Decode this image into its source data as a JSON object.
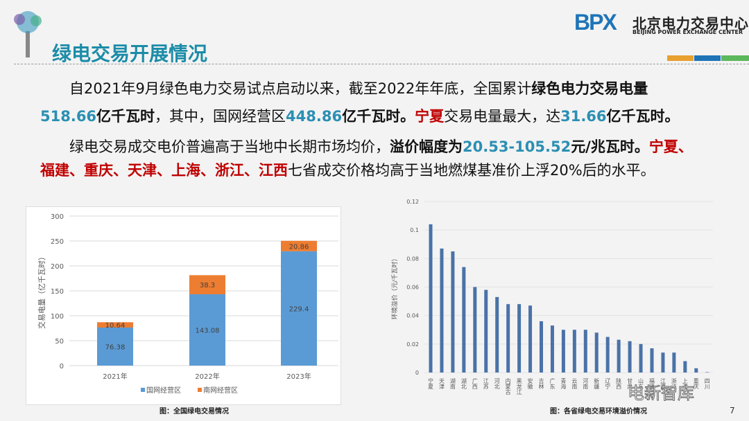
{
  "header": {
    "title": "绿电交易开展情况",
    "logo": {
      "mark": "BPX",
      "name_cn": "北京电力交易中心",
      "name_en": "BEIJING POWER EXCHANGE CENTER"
    },
    "strip_colors": [
      "#e8a030",
      "#1f74b8",
      "#5cb85c"
    ]
  },
  "body": {
    "p1": [
      {
        "t": "自2021年9月绿色电力交易试点启动以来，截至2022年年底，全国累计",
        "s": ""
      },
      {
        "t": "绿色电力交易电量",
        "s": "b"
      }
    ],
    "p1b": [
      {
        "t": "518.66",
        "s": "blue"
      },
      {
        "t": "亿千瓦时",
        "s": "b"
      },
      {
        "t": "，其中，国网经营区",
        "s": ""
      },
      {
        "t": "448.86",
        "s": "blue"
      },
      {
        "t": "亿千瓦时。",
        "s": "b"
      },
      {
        "t": "宁夏",
        "s": "red"
      },
      {
        "t": "交易电量最大，达",
        "s": ""
      },
      {
        "t": "31.66",
        "s": "blue"
      },
      {
        "t": "亿千瓦时。",
        "s": "b"
      }
    ],
    "p2": [
      {
        "t": "绿电交易成交电价普遍高于当地中长期市场均价，",
        "s": ""
      },
      {
        "t": "溢价幅度为",
        "s": "b"
      },
      {
        "t": "20.53-105.52",
        "s": "blue"
      },
      {
        "t": "元/兆瓦时。",
        "s": "b"
      },
      {
        "t": "宁夏、",
        "s": "red"
      }
    ],
    "p2b": [
      {
        "t": "福建、重庆、天津、上海、浙江、江西",
        "s": "red"
      },
      {
        "t": "七省成交价格均高于当地燃煤基准价上浮20%后的水平。",
        "s": ""
      }
    ]
  },
  "chart_data": [
    {
      "type": "bar",
      "stacked": true,
      "categories": [
        "2021年",
        "2022年",
        "2023年"
      ],
      "series": [
        {
          "name": "国网经营区",
          "values": [
            76.38,
            143.08,
            229.4
          ],
          "color": "#5b9bd5"
        },
        {
          "name": "南网经营区",
          "values": [
            10.64,
            38.3,
            20.86
          ],
          "color": "#ed7d31"
        }
      ],
      "data_labels": [
        [
          "76.38",
          "143.08",
          "229.4"
        ],
        [
          "10.64",
          "38.3",
          "20.86"
        ]
      ],
      "ylabel": "交易电量（亿千瓦时）",
      "ylim": [
        0,
        300
      ],
      "yticks": [
        "0",
        "50",
        "100",
        "150",
        "200",
        "250",
        "300"
      ],
      "grid": true,
      "legend": "bottom",
      "caption": "图：全国绿电交易情况"
    },
    {
      "type": "bar",
      "categories": [
        "宁夏",
        "天津",
        "湖南",
        "湖北",
        "广西",
        "江苏",
        "河北",
        "内蒙古",
        "黑龙江",
        "安徽",
        "吉林",
        "广东",
        "青海",
        "云南",
        "河南",
        "新疆",
        "辽宁",
        "陕西",
        "甘肃",
        "山东",
        "福建",
        "江西",
        "浙江",
        "上海",
        "重庆",
        "四川"
      ],
      "values": [
        0.104,
        0.087,
        0.085,
        0.074,
        0.06,
        0.058,
        0.053,
        0.048,
        0.048,
        0.047,
        0.036,
        0.033,
        0.03,
        0.03,
        0.03,
        0.028,
        0.025,
        0.023,
        0.022,
        0.02,
        0.017,
        0.014,
        0.014,
        0.008,
        0.003,
        0.0003
      ],
      "color": "#4a72a8",
      "ylabel": "环境溢价（元/千瓦时）",
      "ylim": [
        0,
        0.12
      ],
      "yticks": [
        "0",
        "0.02",
        "0.04",
        "0.06",
        "0.08",
        "0.1",
        "0.12"
      ],
      "grid": true,
      "caption": "图：各省绿电交易环境溢价情况"
    }
  ],
  "watermark": "电新智库",
  "page_number": "7"
}
